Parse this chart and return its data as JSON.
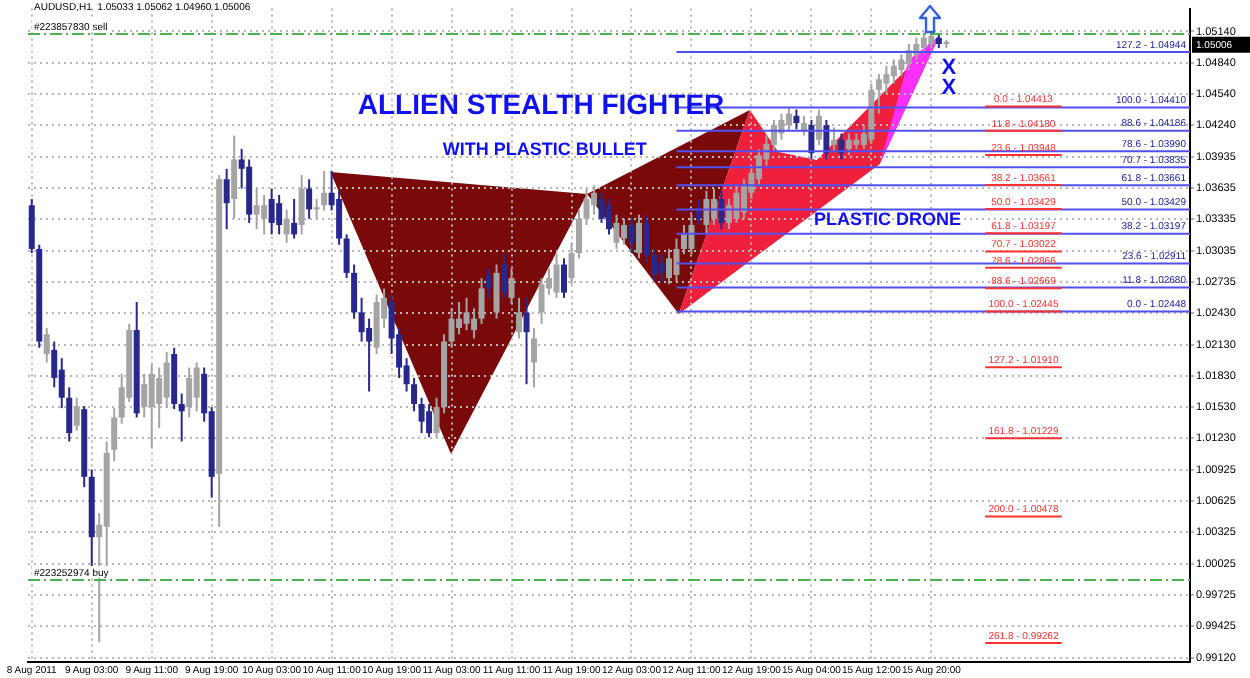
{
  "chart_data": {
    "type": "candlestick",
    "title": "AUDUSD,H1  1.05033 1.05062 1.04960 1.05006",
    "categories": [
      "8 Aug 2011",
      null,
      null,
      null,
      null,
      null,
      null,
      null,
      "9 Aug 03:00",
      null,
      null,
      null,
      null,
      null,
      null,
      null,
      "9 Aug 11:00",
      null,
      null,
      null,
      null,
      null,
      null,
      null,
      "9 Aug 19:00",
      null,
      null,
      null,
      null,
      null,
      null,
      null,
      "10 Aug 03:00",
      null,
      null,
      null,
      null,
      null,
      null,
      null,
      "10 Aug 11:00",
      null,
      null,
      null,
      null,
      null,
      null,
      null,
      "10 Aug 19:00",
      null,
      null,
      null,
      null,
      null,
      null,
      null,
      "11 Aug 03:00",
      null,
      null,
      null,
      null,
      null,
      null,
      null,
      "11 Aug 11:00",
      null,
      null,
      null,
      null,
      null,
      null,
      null,
      "11 Aug 19:00",
      null,
      null,
      null,
      null,
      null,
      null,
      null,
      "12 Aug 03:00",
      null,
      null,
      null,
      null,
      null,
      null,
      null,
      "12 Aug 11:00",
      null,
      null,
      null,
      null,
      null,
      null,
      null,
      "12 Aug 19:00",
      null,
      null,
      null,
      null,
      null,
      null,
      null,
      "15 Aug 04:00",
      null,
      null,
      null,
      null,
      null,
      null,
      null,
      "15 Aug 12:00",
      null,
      null,
      null,
      null,
      null,
      null,
      null,
      "15 Aug 20:00",
      null,
      null,
      null,
      null,
      null,
      null,
      null,
      null,
      null,
      null,
      null,
      null,
      null,
      null,
      null,
      null,
      null,
      null,
      null,
      null,
      null,
      null,
      null,
      null,
      null,
      null,
      null,
      null,
      null,
      null,
      null,
      null,
      null,
      null
    ],
    "ohlc": [
      [
        1.0347,
        1.0353,
        1.0301,
        1.0305
      ],
      [
        1.0305,
        1.0309,
        1.021,
        1.0216
      ],
      [
        1.0204,
        1.0229,
        1.0196,
        1.0223
      ],
      [
        1.0208,
        1.0216,
        1.0172,
        1.0181
      ],
      [
        1.0189,
        1.02,
        1.0152,
        1.0162
      ],
      [
        1.0162,
        1.0172,
        1.012,
        1.0128
      ],
      [
        1.0135,
        1.0162,
        1.013,
        1.0154
      ],
      [
        1.0151,
        1.0154,
        1.0076,
        1.0086
      ],
      [
        1.0086,
        1.0093,
        1.0,
        1.0028
      ],
      [
        1.0028,
        1.0051,
        0.9927,
        1.004
      ],
      [
        1.0038,
        1.012,
        0.999,
        1.0109
      ],
      [
        1.0112,
        1.0152,
        1.0101,
        1.0143
      ],
      [
        1.0143,
        1.0185,
        1.0137,
        1.0172
      ],
      [
        1.0162,
        1.0233,
        1.0158,
        1.0227
      ],
      [
        1.0227,
        1.0254,
        1.0143,
        1.0147
      ],
      [
        1.0153,
        1.0185,
        1.0143,
        1.0175
      ],
      [
        1.0153,
        1.0194,
        1.0114,
        1.0185
      ],
      [
        1.0156,
        1.0191,
        1.0133,
        1.0181
      ],
      [
        1.0162,
        1.0206,
        1.0152,
        1.0196
      ],
      [
        1.0204,
        1.021,
        1.0151,
        1.0156
      ],
      [
        1.0156,
        1.0166,
        1.012,
        1.0149
      ],
      [
        1.0153,
        1.0191,
        1.0143,
        1.0181
      ],
      [
        1.0162,
        1.0196,
        1.0149,
        1.0191
      ],
      [
        1.0185,
        1.0191,
        1.0139,
        1.0147
      ],
      [
        1.0149,
        1.0153,
        1.0066,
        1.0086
      ],
      [
        1.0089,
        1.0376,
        1.0038,
        1.0372
      ],
      [
        1.0372,
        1.0382,
        1.0324,
        1.0349
      ],
      [
        1.0353,
        1.0414,
        1.0334,
        1.0391
      ],
      [
        1.0391,
        1.0401,
        1.0363,
        1.0382
      ],
      [
        1.0384,
        1.0391,
        1.033,
        1.0338
      ],
      [
        1.0338,
        1.0363,
        1.0324,
        1.0347
      ],
      [
        1.0334,
        1.0357,
        1.0319,
        1.0347
      ],
      [
        1.0353,
        1.0363,
        1.0319,
        1.033
      ],
      [
        1.0349,
        1.0357,
        1.0319,
        1.0328
      ],
      [
        1.0319,
        1.0343,
        1.0311,
        1.0334
      ],
      [
        1.033,
        1.0353,
        1.0315,
        1.0319
      ],
      [
        1.0328,
        1.0376,
        1.0319,
        1.0363
      ],
      [
        1.0363,
        1.0372,
        1.0334,
        1.0343
      ],
      [
        1.0343,
        1.0353,
        1.0334,
        1.0345
      ],
      [
        1.0347,
        1.038,
        1.0342,
        1.0359
      ],
      [
        1.0359,
        1.038,
        1.0342,
        1.0347
      ],
      [
        1.0353,
        1.0361,
        1.0309,
        1.0315
      ],
      [
        1.0315,
        1.0319,
        1.0277,
        1.0282
      ],
      [
        1.0282,
        1.029,
        1.0238,
        1.0244
      ],
      [
        1.0244,
        1.0258,
        1.0216,
        1.0225
      ],
      [
        1.0229,
        1.0238,
        1.0168,
        1.0216
      ],
      [
        1.021,
        1.0261,
        1.0204,
        1.0254
      ],
      [
        1.0238,
        1.0267,
        1.0229,
        1.0258
      ],
      [
        1.0254,
        1.0261,
        1.0204,
        1.0219
      ],
      [
        1.0223,
        1.0229,
        1.0181,
        1.0191
      ],
      [
        1.0193,
        1.02,
        1.0168,
        1.0175
      ],
      [
        1.0175,
        1.0181,
        1.0149,
        1.0156
      ],
      [
        1.0156,
        1.0162,
        1.0128,
        1.0139
      ],
      [
        1.0149,
        1.0156,
        1.0124,
        1.0128
      ],
      [
        1.0128,
        1.0162,
        1.0124,
        1.0153
      ],
      [
        1.0153,
        1.0223,
        1.0147,
        1.0216
      ],
      [
        1.0216,
        1.0248,
        1.021,
        1.0238
      ],
      [
        1.0229,
        1.0254,
        1.0223,
        1.0238
      ],
      [
        1.0233,
        1.0258,
        1.0227,
        1.0244
      ],
      [
        1.0227,
        1.0248,
        1.0219,
        1.0238
      ],
      [
        1.0238,
        1.0277,
        1.0233,
        1.0267
      ],
      [
        1.028,
        1.0286,
        1.0258,
        1.0267
      ],
      [
        1.0244,
        1.029,
        1.0238,
        1.0282
      ],
      [
        1.029,
        1.03,
        1.0258,
        1.0263
      ],
      [
        1.0258,
        1.0286,
        1.0252,
        1.0277
      ],
      [
        1.0225,
        1.0258,
        1.0219,
        1.0244
      ],
      [
        1.0244,
        1.0258,
        1.0175,
        1.0225
      ],
      [
        1.0196,
        1.0229,
        1.0172,
        1.0219
      ],
      [
        1.0244,
        1.0277,
        1.0233,
        1.0271
      ],
      [
        1.0267,
        1.0286,
        1.0261,
        1.0277
      ],
      [
        1.0263,
        1.03,
        1.0258,
        1.029
      ],
      [
        1.029,
        1.0296,
        1.0258,
        1.0263
      ],
      [
        1.0277,
        1.0311,
        1.0271,
        1.0301
      ],
      [
        1.0301,
        1.0343,
        1.0296,
        1.0334
      ],
      [
        1.0334,
        1.0363,
        1.0328,
        1.0353
      ],
      [
        1.0347,
        1.0366,
        1.0338,
        1.0359
      ],
      [
        1.0353,
        1.0359,
        1.033,
        1.0334
      ],
      [
        1.0347,
        1.0353,
        1.0319,
        1.0324
      ],
      [
        1.0311,
        1.0338,
        1.0305,
        1.033
      ],
      [
        1.0315,
        1.0334,
        1.0309,
        1.0328
      ],
      [
        1.0328,
        1.0334,
        1.0301,
        1.0311
      ],
      [
        1.0301,
        1.0338,
        1.0296,
        1.033
      ],
      [
        1.033,
        1.0338,
        1.0292,
        1.0299
      ],
      [
        1.0299,
        1.0305,
        1.0275,
        1.028
      ],
      [
        1.0292,
        1.03,
        1.0273,
        1.0282
      ],
      [
        1.0277,
        1.0305,
        1.0271,
        1.0296
      ],
      [
        1.028,
        1.0315,
        1.0273,
        1.0305
      ],
      [
        1.0305,
        1.0328,
        1.03,
        1.032
      ],
      [
        1.0305,
        1.0338,
        1.03,
        1.0328
      ],
      [
        1.0343,
        1.0353,
        1.0328,
        1.0334
      ],
      [
        1.0328,
        1.0361,
        1.0319,
        1.0353
      ],
      [
        1.0334,
        1.0363,
        1.0328,
        1.0353
      ],
      [
        1.0353,
        1.0361,
        1.0324,
        1.033
      ],
      [
        1.033,
        1.0353,
        1.0324,
        1.0347
      ],
      [
        1.0334,
        1.0366,
        1.033,
        1.0359
      ],
      [
        1.034,
        1.0372,
        1.0334,
        1.0366
      ],
      [
        1.0359,
        1.0385,
        1.0353,
        1.0378
      ],
      [
        1.0372,
        1.0401,
        1.0366,
        1.0395
      ],
      [
        1.0391,
        1.0414,
        1.0385,
        1.0406
      ],
      [
        1.0405,
        1.0429,
        1.0399,
        1.0424
      ],
      [
        1.0416,
        1.0435,
        1.041,
        1.0429
      ],
      [
        1.0424,
        1.0441,
        1.0418,
        1.0435
      ],
      [
        1.0433,
        1.0439,
        1.042,
        1.0426
      ],
      [
        1.0418,
        1.0433,
        1.0414,
        1.0426
      ],
      [
        1.0424,
        1.0429,
        1.0391,
        1.0397
      ],
      [
        1.041,
        1.0439,
        1.0405,
        1.0433
      ],
      [
        1.0424,
        1.0429,
        1.0391,
        1.0397
      ],
      [
        1.0405,
        1.0422,
        1.0399,
        1.041
      ],
      [
        1.041,
        1.0416,
        1.0391,
        1.0397
      ],
      [
        1.0401,
        1.0416,
        1.0395,
        1.041
      ],
      [
        1.0405,
        1.0416,
        1.0401,
        1.041
      ],
      [
        1.0405,
        1.0424,
        1.0401,
        1.0416
      ],
      [
        1.041,
        1.0464,
        1.0406,
        1.0458
      ],
      [
        1.0458,
        1.0473,
        1.0435,
        1.0468
      ],
      [
        1.0464,
        1.0481,
        1.0454,
        1.0473
      ],
      [
        1.0471,
        1.0487,
        1.0464,
        1.0481
      ],
      [
        1.0477,
        1.0492,
        1.0471,
        1.0487
      ],
      [
        1.0483,
        1.0502,
        1.0477,
        1.0496
      ],
      [
        1.0491,
        1.0508,
        1.0487,
        1.0502
      ],
      [
        1.0498,
        1.0513,
        1.0492,
        1.0508
      ],
      [
        1.0502,
        1.0515,
        1.0498,
        1.051
      ],
      [
        1.0508,
        1.0512,
        1.0498,
        1.0502
      ],
      [
        1.0502,
        1.0506,
        1.0498,
        1.0504
      ],
      null,
      null,
      null,
      null,
      null,
      null,
      null,
      null,
      null,
      null,
      null,
      null,
      null,
      null,
      null,
      null,
      null,
      null,
      null,
      null,
      null,
      null,
      null,
      null,
      null,
      null,
      null,
      null,
      null,
      null,
      null,
      null
    ],
    "ylim": [
      0.9908,
      1.0536
    ],
    "yticks": [
      {
        "value": 0.9912,
        "label": "0.99120"
      },
      {
        "value": 0.99425,
        "label": "0.99425"
      },
      {
        "value": 0.99725,
        "label": "0.99725"
      },
      {
        "value": 1.00025,
        "label": "1.00025"
      },
      {
        "value": 1.00325,
        "label": "1.00325"
      },
      {
        "value": 1.00625,
        "label": "1.00625"
      },
      {
        "value": 1.00925,
        "label": "1.00925"
      },
      {
        "value": 1.0123,
        "label": "1.01230"
      },
      {
        "value": 1.0153,
        "label": "1.01530"
      },
      {
        "value": 1.0183,
        "label": "1.01830"
      },
      {
        "value": 1.0213,
        "label": "1.02130"
      },
      {
        "value": 1.0243,
        "label": "1.02430"
      },
      {
        "value": 1.02735,
        "label": "1.02735"
      },
      {
        "value": 1.03035,
        "label": "1.03035"
      },
      {
        "value": 1.03335,
        "label": "1.03335"
      },
      {
        "value": 1.03635,
        "label": "1.03635"
      },
      {
        "value": 1.03935,
        "label": "1.03935"
      },
      {
        "value": 1.0424,
        "label": "1.04240"
      },
      {
        "value": 1.0454,
        "label": "1.04540"
      },
      {
        "value": 1.0484,
        "label": "1.04840"
      },
      {
        "value": 1.0514,
        "label": "1.05140"
      }
    ],
    "grid": true,
    "ref_lines": [
      {
        "axis": "y",
        "value": 1.05115,
        "label": "#223857830 sell",
        "color": "#4caf50",
        "line_style": "dashed"
      },
      {
        "axis": "y",
        "value": 0.99868,
        "label": "#223252974 buy",
        "color": "#4caf50",
        "line_style": "dashed"
      },
      {
        "axis": "y",
        "value": 1.04944,
        "color": "#5050f0",
        "line_style": "solid"
      },
      {
        "axis": "y",
        "value": 1.0441,
        "color": "#5050f0",
        "line_style": "solid"
      },
      {
        "axis": "y",
        "value": 1.04186,
        "color": "#5050f0",
        "line_style": "solid"
      },
      {
        "axis": "y",
        "value": 1.0399,
        "color": "#5050f0",
        "line_style": "solid"
      },
      {
        "axis": "y",
        "value": 1.03835,
        "color": "#5050f0",
        "line_style": "solid"
      },
      {
        "axis": "y",
        "value": 1.03661,
        "color": "#5050f0",
        "line_style": "solid"
      },
      {
        "axis": "y",
        "value": 1.03429,
        "color": "#5050f0",
        "line_style": "solid"
      },
      {
        "axis": "y",
        "value": 1.03197,
        "color": "#5050f0",
        "line_style": "solid"
      },
      {
        "axis": "y",
        "value": 1.02911,
        "color": "#5050f0",
        "line_style": "solid"
      },
      {
        "axis": "y",
        "value": 1.0268,
        "color": "#5050f0",
        "line_style": "solid"
      },
      {
        "axis": "y",
        "value": 1.02448,
        "color": "#5050f0",
        "line_style": "solid"
      }
    ],
    "annotations": [
      "ALLIEN STEALTH FIGHTER",
      "WITH PLASTIC BULLET",
      "PLASTIC DRONE",
      "X",
      "X",
      {
        "text": "127.2 - 1.04944",
        "y": 1.04944
      },
      {
        "text": "100.0 - 1.04410",
        "y": 1.0441
      },
      {
        "text": "88.6 - 1.04186",
        "y": 1.04186
      },
      {
        "text": "78.6 - 1.03990",
        "y": 1.0399
      },
      {
        "text": "70.7 - 1.03835",
        "y": 1.03835
      },
      {
        "text": "61.8 - 1.03661",
        "y": 1.03661
      },
      {
        "text": "50.0 - 1.03429",
        "y": 1.03429
      },
      {
        "text": "38.2 - 1.03197",
        "y": 1.03197
      },
      {
        "text": "23.6 - 1.02911",
        "y": 1.02911
      },
      {
        "text": "11.8 - 1.02680",
        "y": 1.0268
      },
      {
        "text": "0.0 - 1.02448",
        "y": 1.02448
      },
      "0.0 - 1.04413",
      "11.8 - 1.04180",
      "23.6 - 1.03948",
      "38.2 - 1.03661",
      "50.0 - 1.03429",
      "61.8 - 1.03197",
      "70.7 - 1.03022",
      "78.6 - 1.02866",
      "88.6 - 1.02669",
      "100.0 - 1.02445",
      "127.2 - 1.01910",
      "161.8 - 1.01229",
      "200.0 - 1.00478",
      "261.8 - 0.99262",
      "1.05006"
    ]
  }
}
